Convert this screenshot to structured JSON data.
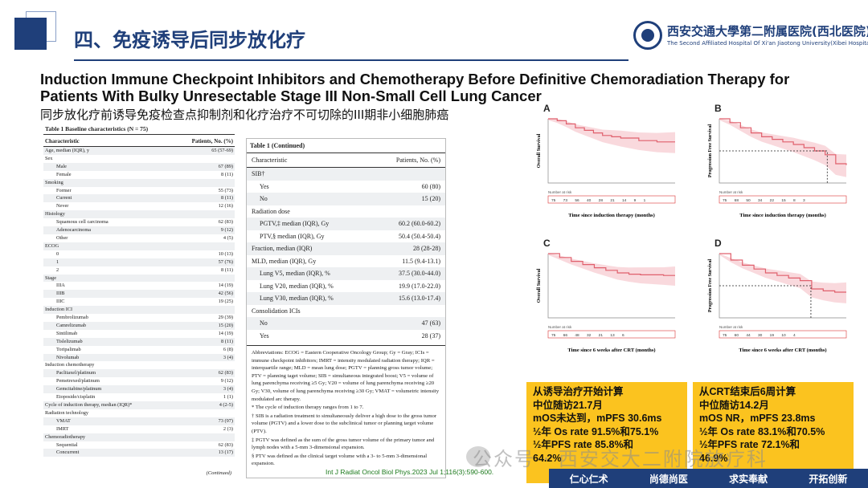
{
  "page_title": "四、免疫诱导后同步放化疗",
  "logo": {
    "cn": "西安交通大學第二附属医院(西北医院)",
    "en": "The Second Affiliated Hospital Of Xi'an Jiaotong University(Xibei Hospital)"
  },
  "heading_en": "Induction Immune Checkpoint Inhibitors and Chemotherapy Before Definitive Chemoradiation Therapy for Patients With Bulky Unresectable Stage III Non-Small Cell Lung Cancer",
  "heading_cn": "同步放化疗前诱导免疫检查点抑制剂和化疗治疗不可切除的III期非小细胞肺癌",
  "table1": {
    "caption": "Table 1    Baseline characteristics (N = 75)",
    "col_char": "Characteristic",
    "col_val": "Patients, No. (%)",
    "rows": [
      {
        "label": "Age, median (IQR), y",
        "value": "65 (57-69)",
        "sub": false
      },
      {
        "label": "Sex",
        "value": "",
        "sub": false
      },
      {
        "label": "Male",
        "value": "67 (89)",
        "sub": true
      },
      {
        "label": "Female",
        "value": "8 (11)",
        "sub": true
      },
      {
        "label": "Smoking",
        "value": "",
        "sub": false
      },
      {
        "label": "Former",
        "value": "55 (73)",
        "sub": true
      },
      {
        "label": "Current",
        "value": "8 (11)",
        "sub": true
      },
      {
        "label": "Never",
        "value": "12 (16)",
        "sub": true
      },
      {
        "label": "Histology",
        "value": "",
        "sub": false
      },
      {
        "label": "Squamous cell carcinoma",
        "value": "62 (83)",
        "sub": true
      },
      {
        "label": "Adenocarcinoma",
        "value": "9 (12)",
        "sub": true
      },
      {
        "label": "Other",
        "value": "4 (5)",
        "sub": true
      },
      {
        "label": "ECOG",
        "value": "",
        "sub": false
      },
      {
        "label": "0",
        "value": "10 (13)",
        "sub": true
      },
      {
        "label": "1",
        "value": "57 (76)",
        "sub": true
      },
      {
        "label": "2",
        "value": "8 (11)",
        "sub": true
      },
      {
        "label": "Stage",
        "value": "",
        "sub": false
      },
      {
        "label": "IIIA",
        "value": "14 (19)",
        "sub": true
      },
      {
        "label": "IIIB",
        "value": "42 (56)",
        "sub": true
      },
      {
        "label": "IIIC",
        "value": "19 (25)",
        "sub": true
      },
      {
        "label": "Induction ICI",
        "value": "",
        "sub": false
      },
      {
        "label": "Pembrolizumab",
        "value": "29 (39)",
        "sub": true
      },
      {
        "label": "Camrelizumab",
        "value": "15 (20)",
        "sub": true
      },
      {
        "label": "Sintilimab",
        "value": "14 (19)",
        "sub": true
      },
      {
        "label": "Tislelizumab",
        "value": "8 (11)",
        "sub": true
      },
      {
        "label": "Toripalimab",
        "value": "6 (8)",
        "sub": true
      },
      {
        "label": "Nivolumab",
        "value": "3 (4)",
        "sub": true
      },
      {
        "label": "Induction chemotherapy",
        "value": "",
        "sub": false
      },
      {
        "label": "Paclitaxel/platinum",
        "value": "62 (83)",
        "sub": true
      },
      {
        "label": "Pemetrexed/platinum",
        "value": "9 (12)",
        "sub": true
      },
      {
        "label": "Gemcitabine/platinum",
        "value": "3 (4)",
        "sub": true
      },
      {
        "label": "Etoposide/cisplatin",
        "value": "1 (1)",
        "sub": true
      },
      {
        "label": "Cycle of induction therapy, median (IQR)*",
        "value": "4 (2-5)",
        "sub": false
      },
      {
        "label": "Radiation technology",
        "value": "",
        "sub": false
      },
      {
        "label": "VMAT",
        "value": "73 (97)",
        "sub": true
      },
      {
        "label": "IMRT",
        "value": "2 (3)",
        "sub": true
      },
      {
        "label": "Chemoradiotherapy",
        "value": "",
        "sub": false
      },
      {
        "label": "Sequential",
        "value": "62 (83)",
        "sub": true
      },
      {
        "label": "Concurrent",
        "value": "13 (17)",
        "sub": true
      }
    ],
    "continued": "(Continued)"
  },
  "table1_cont": {
    "caption": "Table 1 (Continued)",
    "col_char": "Characteristic",
    "col_val": "Patients, No. (%)",
    "rows": [
      {
        "label": "SIB†",
        "value": "",
        "sub": false
      },
      {
        "label": "Yes",
        "value": "60 (80)",
        "sub": true
      },
      {
        "label": "No",
        "value": "15 (20)",
        "sub": true
      },
      {
        "label": "Radiation dose",
        "value": "",
        "sub": false
      },
      {
        "label": "PGTV,‡ median (IQR), Gy",
        "value": "60.2 (60.0-60.2)",
        "sub": true
      },
      {
        "label": "PTV,§ median (IQR), Gy",
        "value": "50.4 (50.4-50.4)",
        "sub": true
      },
      {
        "label": "Fraction, median (IQR)",
        "value": "28 (28-28)",
        "sub": false
      },
      {
        "label": "MLD, median (IQR), Gy",
        "value": "11.5 (9.4-13.1)",
        "sub": false
      },
      {
        "label": "Lung V5, median (IQR), %",
        "value": "37.5 (30.0-44.0)",
        "sub": true
      },
      {
        "label": "Lung V20, median (IQR), %",
        "value": "19.9 (17.0-22.0)",
        "sub": true
      },
      {
        "label": "Lung V30, median (IQR), %",
        "value": "15.6 (13.0-17.4)",
        "sub": true
      },
      {
        "label": "Consolidation ICIs",
        "value": "",
        "sub": false
      },
      {
        "label": "No",
        "value": "47 (63)",
        "sub": true
      },
      {
        "label": "Yes",
        "value": "28 (37)",
        "sub": true
      }
    ],
    "notes": [
      "Abbreviations: ECOG = Eastern Cooperative Oncology Group; Gy = Gray; ICIs = immune checkpoint inhibitors; IMRT = intensity modulated radiation therapy; IQR = interquartile range; MLD = mean lung dose; PGTV = planning gross tumor volume; PTV = planning taget volume; SIB = simultaneous integrated boost; V5 = volume of lung parenchyma receiving ≥5 Gy; V20 = volume of lung parenchyma receiving ≥20 Gy; V30, volume of lung parenchyma receiving ≥30 Gy; VMAT = volumetric intensity modulated arc therapy.",
      "* The cycle of induction therapy ranges from 1 to 7.",
      "† SIB is a radiation treatment to simultaneously deliver a high dose to the gross tumor volume (PGTV) and a lower dose to the subclinical tumor or planning target volume (PTV).",
      "‡ PGTV was defined as the sum of the gross tumor volume of the primary tumor and lymph nodes with a 5-mm 3-dimensional expansion.",
      "§ PTV was defined as the clinical target volume with a 3- to 5-mm 3-dimensional expansion."
    ]
  },
  "km_panels": [
    {
      "letter": "A",
      "ylabel": "Overall Survival",
      "xlabel": "Time since induction therapy (months)",
      "risk_label": "Number at risk",
      "risk": "75 73 56 40 28 21 14 9 1",
      "curve": [
        [
          0,
          1.0
        ],
        [
          3,
          0.97
        ],
        [
          6,
          0.92
        ],
        [
          9,
          0.86
        ],
        [
          12,
          0.82
        ],
        [
          15,
          0.78
        ],
        [
          18,
          0.74
        ],
        [
          21,
          0.72
        ],
        [
          24,
          0.7
        ],
        [
          30,
          0.66
        ],
        [
          36,
          0.64
        ],
        [
          42,
          0.64
        ]
      ],
      "median_x": null
    },
    {
      "letter": "B",
      "ylabel": "Progression Free Survival",
      "xlabel": "Time since induction therapy (months)",
      "risk_label": "Number at risk",
      "risk": "75 68 50 34 22 15 8 3",
      "curve": [
        [
          0,
          1.0
        ],
        [
          3,
          0.94
        ],
        [
          6,
          0.86
        ],
        [
          9,
          0.78
        ],
        [
          12,
          0.72
        ],
        [
          15,
          0.68
        ],
        [
          18,
          0.64
        ],
        [
          21,
          0.6
        ],
        [
          24,
          0.55
        ],
        [
          27,
          0.5
        ],
        [
          30,
          0.44
        ],
        [
          33,
          0.3
        ],
        [
          36,
          0.28
        ]
      ],
      "median_x": 30.6
    },
    {
      "letter": "C",
      "ylabel": "Overall Survival",
      "xlabel": "Time since 6 weeks after CRT (months)",
      "risk_label": "Number at risk",
      "risk": "75 66 48 32 21 13 6",
      "curve": [
        [
          0,
          1.0
        ],
        [
          3,
          0.94
        ],
        [
          6,
          0.88
        ],
        [
          9,
          0.83
        ],
        [
          12,
          0.78
        ],
        [
          15,
          0.74
        ],
        [
          18,
          0.7
        ],
        [
          21,
          0.68
        ],
        [
          24,
          0.67
        ],
        [
          30,
          0.66
        ],
        [
          33,
          0.66
        ]
      ],
      "median_x": null
    },
    {
      "letter": "D",
      "ylabel": "Progression Free Survival",
      "xlabel": "Time since 6 weeks after CRT (months)",
      "risk_label": "Number at risk",
      "risk": "75 60 44 30 19 10 4",
      "curve": [
        [
          0,
          1.0
        ],
        [
          3,
          0.9
        ],
        [
          6,
          0.82
        ],
        [
          9,
          0.76
        ],
        [
          12,
          0.7
        ],
        [
          15,
          0.66
        ],
        [
          18,
          0.62
        ],
        [
          21,
          0.58
        ],
        [
          24,
          0.45
        ],
        [
          27,
          0.42
        ],
        [
          30,
          0.4
        ],
        [
          33,
          0.4
        ]
      ],
      "median_x": 23.8
    }
  ],
  "box1": {
    "lines": [
      "从诱导治疗开始计算",
      "中位随访21.7月",
      "mOS未达到，mPFS 30.6ms",
      "½年 Os rate  91.5%和75.1%",
      "½年PFS rate  85.8%和",
      "64.2%"
    ]
  },
  "box2": {
    "lines": [
      "从CRT结束后6周计算",
      "中位随访14.2月",
      "mOS NR，mPFS 23.8ms",
      "½年 Os rate  83.1%和70.5%",
      "½年PFS rate  72.1%和",
      "46.9%"
    ]
  },
  "citation": "Int J Radiat Oncol Biol Phys.2023 Jul 1;116(3):590-600.",
  "watermark": "公众号 · 西安交大二附院放疗科",
  "footer": [
    "仁心仁术",
    "尚德尚医",
    "求实奉献",
    "开拓创新"
  ],
  "colors": {
    "navy": "#1f3f7a",
    "ci_fill": "#f6c9cf",
    "curve": "#e0606d",
    "highlight": "#fbc31f"
  }
}
